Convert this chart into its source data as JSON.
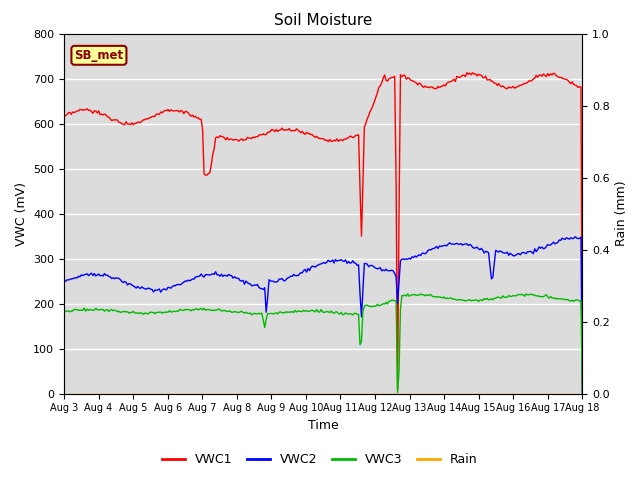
{
  "title": "Soil Moisture",
  "xlabel": "Time",
  "ylabel_left": "VWC (mV)",
  "ylabel_right": "Rain (mm)",
  "ylim_left": [
    0,
    800
  ],
  "ylim_right": [
    0.0,
    1.0
  ],
  "yticks_left": [
    0,
    100,
    200,
    300,
    400,
    500,
    600,
    700,
    800
  ],
  "yticks_right": [
    0.0,
    0.2,
    0.4,
    0.6,
    0.8,
    1.0
  ],
  "xticklabels": [
    "Aug 3",
    "Aug 4",
    "Aug 5",
    "Aug 6",
    "Aug 7",
    "Aug 8",
    "Aug 9",
    "Aug 10",
    "Aug 11",
    "Aug 12",
    "Aug 13",
    "Aug 14",
    "Aug 15",
    "Aug 16",
    "Aug 17",
    "Aug 18"
  ],
  "annotation_text": "SB_met",
  "annotation_bg": "#FFFF99",
  "annotation_border": "#8B0000",
  "colors": {
    "VWC1": "#FF0000",
    "VWC2": "#0000FF",
    "VWC3": "#00BB00",
    "Rain": "#FFA500"
  },
  "plot_bg": "#DCDCDC",
  "grid_color": "#FFFFFF",
  "title_fontsize": 11,
  "axis_fontsize": 9
}
